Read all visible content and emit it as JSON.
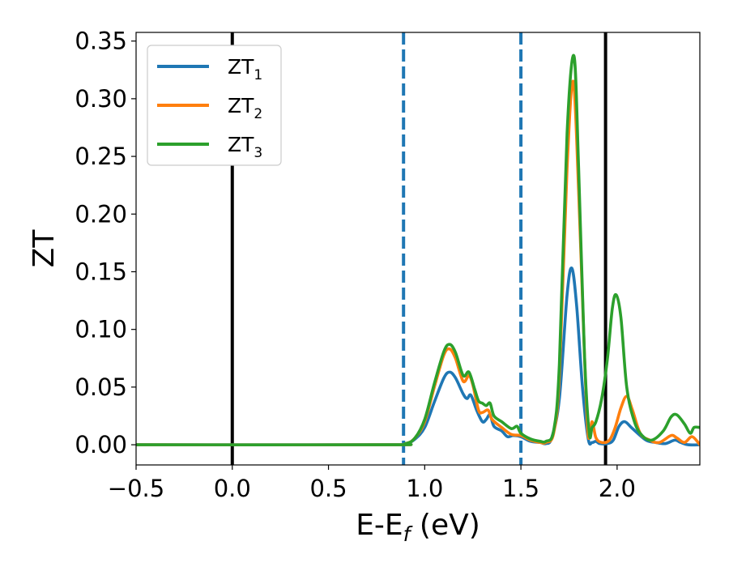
{
  "chart_data": {
    "type": "line",
    "xlabel": "E-E",
    "xlabel_sub": "f",
    "xlabel_unit": " (eV)",
    "ylabel": "ZT",
    "xlim": [
      -0.5,
      2.43
    ],
    "ylim": [
      -0.0175,
      0.3575
    ],
    "x_ticks": [
      -0.5,
      0.0,
      0.5,
      1.0,
      1.5,
      2.0
    ],
    "x_tick_labels": [
      "−0.5",
      "0.0",
      "0.5",
      "1.0",
      "1.5",
      "2.0"
    ],
    "y_ticks": [
      0.0,
      0.05,
      0.1,
      0.15,
      0.2,
      0.25,
      0.3,
      0.35
    ],
    "y_tick_labels": [
      "0.00",
      "0.05",
      "0.10",
      "0.15",
      "0.20",
      "0.25",
      "0.30",
      "0.35"
    ],
    "grid": false,
    "legend_position": "top-left",
    "vertical_lines": [
      {
        "x": 0.0,
        "style": "solid",
        "color": "#000000"
      },
      {
        "x": 0.89,
        "style": "dashed",
        "color": "#1f77b4"
      },
      {
        "x": 1.5,
        "style": "dashed",
        "color": "#1f77b4"
      },
      {
        "x": 1.94,
        "style": "solid",
        "color": "#000000"
      }
    ],
    "series": [
      {
        "name": "ZT",
        "name_sub": "1",
        "color": "#1f77b4",
        "points": [
          [
            -0.5,
            0
          ],
          [
            0.8,
            0
          ],
          [
            0.9,
            0.001
          ],
          [
            0.95,
            0.005
          ],
          [
            1.0,
            0.015
          ],
          [
            1.05,
            0.037
          ],
          [
            1.1,
            0.058
          ],
          [
            1.13,
            0.063
          ],
          [
            1.16,
            0.058
          ],
          [
            1.2,
            0.044
          ],
          [
            1.22,
            0.04
          ],
          [
            1.24,
            0.043
          ],
          [
            1.27,
            0.03
          ],
          [
            1.3,
            0.02
          ],
          [
            1.32,
            0.022
          ],
          [
            1.34,
            0.026
          ],
          [
            1.36,
            0.016
          ],
          [
            1.4,
            0.012
          ],
          [
            1.43,
            0.007
          ],
          [
            1.46,
            0.008
          ],
          [
            1.5,
            0.007
          ],
          [
            1.55,
            0.003
          ],
          [
            1.6,
            0.002
          ],
          [
            1.63,
            0.001
          ],
          [
            1.66,
            0.006
          ],
          [
            1.7,
            0.04
          ],
          [
            1.74,
            0.13
          ],
          [
            1.765,
            0.153
          ],
          [
            1.79,
            0.12
          ],
          [
            1.82,
            0.05
          ],
          [
            1.85,
            0.005
          ],
          [
            1.87,
            0.002
          ],
          [
            1.89,
            0.003
          ],
          [
            1.91,
            0.001
          ],
          [
            1.95,
            0.001
          ],
          [
            1.98,
            0.004
          ],
          [
            2.01,
            0.016
          ],
          [
            2.04,
            0.02
          ],
          [
            2.08,
            0.014
          ],
          [
            2.15,
            0.004
          ],
          [
            2.2,
            0.002
          ],
          [
            2.25,
            0.001
          ],
          [
            2.3,
            0.004
          ],
          [
            2.33,
            0.002
          ],
          [
            2.37,
            0.0
          ],
          [
            2.43,
            0.0
          ]
        ]
      },
      {
        "name": "ZT",
        "name_sub": "2",
        "color": "#ff7f0e",
        "points": [
          [
            -0.5,
            0
          ],
          [
            0.8,
            0
          ],
          [
            0.9,
            0.001
          ],
          [
            0.95,
            0.006
          ],
          [
            1.0,
            0.02
          ],
          [
            1.05,
            0.05
          ],
          [
            1.1,
            0.078
          ],
          [
            1.13,
            0.083
          ],
          [
            1.16,
            0.075
          ],
          [
            1.2,
            0.055
          ],
          [
            1.23,
            0.06
          ],
          [
            1.25,
            0.052
          ],
          [
            1.28,
            0.03
          ],
          [
            1.3,
            0.028
          ],
          [
            1.33,
            0.03
          ],
          [
            1.35,
            0.022
          ],
          [
            1.4,
            0.015
          ],
          [
            1.45,
            0.009
          ],
          [
            1.5,
            0.008
          ],
          [
            1.55,
            0.004
          ],
          [
            1.6,
            0.002
          ],
          [
            1.63,
            0.002
          ],
          [
            1.67,
            0.01
          ],
          [
            1.7,
            0.06
          ],
          [
            1.74,
            0.24
          ],
          [
            1.772,
            0.315
          ],
          [
            1.8,
            0.22
          ],
          [
            1.83,
            0.08
          ],
          [
            1.85,
            0.008
          ],
          [
            1.87,
            0.02
          ],
          [
            1.89,
            0.006
          ],
          [
            1.92,
            0.002
          ],
          [
            1.96,
            0.004
          ],
          [
            1.99,
            0.015
          ],
          [
            2.02,
            0.032
          ],
          [
            2.05,
            0.042
          ],
          [
            2.08,
            0.03
          ],
          [
            2.12,
            0.01
          ],
          [
            2.17,
            0.004
          ],
          [
            2.22,
            0.002
          ],
          [
            2.28,
            0.008
          ],
          [
            2.31,
            0.006
          ],
          [
            2.35,
            0.002
          ],
          [
            2.39,
            0.007
          ],
          [
            2.43,
            0.0
          ]
        ]
      },
      {
        "name": "ZT",
        "name_sub": "3",
        "color": "#2ca02c",
        "points": [
          [
            -0.5,
            0
          ],
          [
            0.8,
            0
          ],
          [
            0.9,
            0.001
          ],
          [
            0.95,
            0.006
          ],
          [
            1.0,
            0.022
          ],
          [
            1.05,
            0.053
          ],
          [
            1.1,
            0.081
          ],
          [
            1.13,
            0.087
          ],
          [
            1.16,
            0.08
          ],
          [
            1.2,
            0.06
          ],
          [
            1.23,
            0.063
          ],
          [
            1.26,
            0.048
          ],
          [
            1.28,
            0.038
          ],
          [
            1.3,
            0.036
          ],
          [
            1.32,
            0.034
          ],
          [
            1.34,
            0.036
          ],
          [
            1.36,
            0.025
          ],
          [
            1.4,
            0.02
          ],
          [
            1.45,
            0.014
          ],
          [
            1.48,
            0.016
          ],
          [
            1.5,
            0.01
          ],
          [
            1.55,
            0.005
          ],
          [
            1.6,
            0.003
          ],
          [
            1.63,
            0.003
          ],
          [
            1.67,
            0.012
          ],
          [
            1.7,
            0.07
          ],
          [
            1.74,
            0.27
          ],
          [
            1.776,
            0.337
          ],
          [
            1.8,
            0.24
          ],
          [
            1.83,
            0.08
          ],
          [
            1.855,
            0.01
          ],
          [
            1.87,
            0.015
          ],
          [
            1.89,
            0.02
          ],
          [
            1.92,
            0.04
          ],
          [
            1.95,
            0.075
          ],
          [
            1.975,
            0.118
          ],
          [
            1.995,
            0.13
          ],
          [
            2.02,
            0.11
          ],
          [
            2.05,
            0.05
          ],
          [
            2.09,
            0.02
          ],
          [
            2.13,
            0.008
          ],
          [
            2.18,
            0.004
          ],
          [
            2.24,
            0.012
          ],
          [
            2.28,
            0.024
          ],
          [
            2.31,
            0.026
          ],
          [
            2.35,
            0.018
          ],
          [
            2.38,
            0.01
          ],
          [
            2.4,
            0.015
          ],
          [
            2.43,
            0.015
          ]
        ]
      }
    ]
  }
}
